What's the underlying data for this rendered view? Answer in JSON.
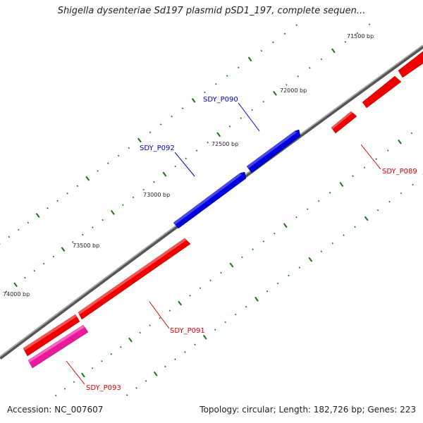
{
  "title": "Shigella dysenteriae Sd197 plasmid pSD1_197, complete sequen...",
  "footer": {
    "accession": "Accession: NC_007607",
    "summary": "Topology: circular; Length: 182,726 bp; Genes: 223"
  },
  "ticks": [
    "71500 bp",
    "72000 bp",
    "72500 bp",
    "73000 bp",
    "73500 bp",
    "74000 bp"
  ],
  "genes": [
    {
      "name": "SDY_P089",
      "strand": "forward",
      "color": "#ee0000"
    },
    {
      "name": "SDY_P090",
      "strand": "reverse",
      "color": "#0000cc"
    },
    {
      "name": "SDY_P091",
      "strand": "forward",
      "color": "#ee0000"
    },
    {
      "name": "SDY_P092",
      "strand": "reverse",
      "color": "#0000cc"
    },
    {
      "name": "SDY_P093",
      "strand": "forward",
      "color": "#e8199a"
    }
  ],
  "colors": {
    "backbone": "#777777",
    "tick_mark": "#117711"
  }
}
